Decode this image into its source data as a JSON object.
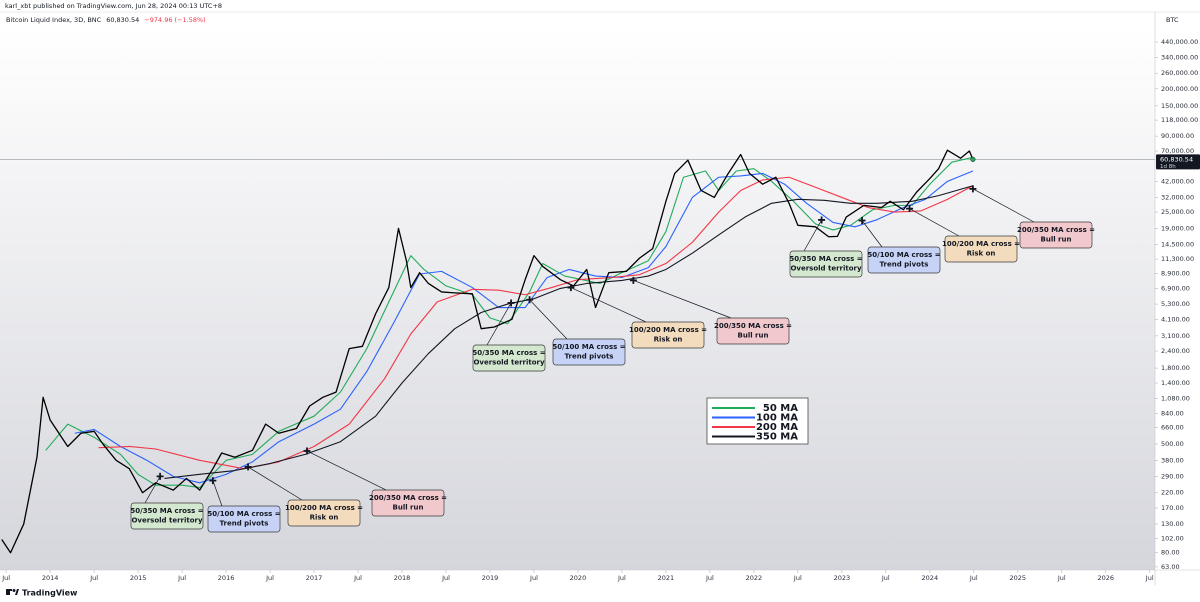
{
  "header": "karl_xbt published on TradingView.com, Jun 28, 2024 00:13 UTC+8",
  "footer": "TradingView",
  "chart_data": {
    "type": "line",
    "subtitle": "Bitcoin Liquid Index, 3D, BNC",
    "change_label": "−974.96 (−1.58%)",
    "currency": "BTC",
    "countdown": "1d 8h",
    "last": {
      "value": 60830.54,
      "label": "60,830.54"
    },
    "log_scale": true,
    "grid": false,
    "xlim": [
      2013.43,
      2026.56
    ],
    "ylim": [
      50.5,
      539000
    ],
    "xticks": [
      {
        "value": 2013.5,
        "label": "Jul"
      },
      2014,
      {
        "value": 2014.5,
        "label": "Jul"
      },
      2015,
      {
        "value": 2015.5,
        "label": "Jul"
      },
      2016,
      {
        "value": 2016.5,
        "label": "Jul"
      },
      2017,
      {
        "value": 2017.5,
        "label": "Jul"
      },
      2018,
      {
        "value": 2018.5,
        "label": "Jul"
      },
      2019,
      {
        "value": 2019.5,
        "label": "Jul"
      },
      2020,
      {
        "value": 2020.5,
        "label": "Jul"
      },
      2021,
      {
        "value": 2021.5,
        "label": "Jul"
      },
      2022,
      {
        "value": 2022.5,
        "label": "Jul"
      },
      2023,
      {
        "value": 2023.5,
        "label": "Jul"
      },
      2024,
      {
        "value": 2024.5,
        "label": "Jul"
      },
      2025,
      {
        "value": 2025.5,
        "label": "Jul"
      },
      2026,
      {
        "value": 2026.5,
        "label": "Jul"
      }
    ],
    "yticks": [
      {
        "value": 440000,
        "label": "440,000.00"
      },
      {
        "value": 340000,
        "label": "340,000.00"
      },
      {
        "value": 260000,
        "label": "260,000.00"
      },
      {
        "value": 200000,
        "label": "200,000.00"
      },
      {
        "value": 150000,
        "label": "150,000.00"
      },
      {
        "value": 118000,
        "label": "118,000.00"
      },
      {
        "value": 90000,
        "label": "90,000.00"
      },
      {
        "value": 70000,
        "label": "70,000.00"
      },
      {
        "value": 42000,
        "label": "42,000.00"
      },
      {
        "value": 32000,
        "label": "32,000.00"
      },
      {
        "value": 25000,
        "label": "25,000.00"
      },
      {
        "value": 19000,
        "label": "19,000.00"
      },
      {
        "value": 14500,
        "label": "14,500.00"
      },
      {
        "value": 11300,
        "label": "11,300.00"
      },
      {
        "value": 8900,
        "label": "8,900.00"
      },
      {
        "value": 6900,
        "label": "6,900.00"
      },
      {
        "value": 5300,
        "label": "5,300.00"
      },
      {
        "value": 4100,
        "label": "4,100.00"
      },
      {
        "value": 3100,
        "label": "3,100.00"
      },
      {
        "value": 2400,
        "label": "2,400.00"
      },
      {
        "value": 1800,
        "label": "1,800.00"
      },
      {
        "value": 1400,
        "label": "1,400.00"
      },
      {
        "value": 1080,
        "label": "1,080.00"
      },
      {
        "value": 840,
        "label": "840.00"
      },
      {
        "value": 660,
        "label": "660.00"
      },
      {
        "value": 500,
        "label": "500.00"
      },
      {
        "value": 380,
        "label": "380.00"
      },
      {
        "value": 290,
        "label": "290.00"
      },
      {
        "value": 220,
        "label": "220.00"
      },
      {
        "value": 170,
        "label": "170.00"
      },
      {
        "value": 130,
        "label": "130.00"
      },
      {
        "value": 102,
        "label": "102.00"
      },
      {
        "value": 80,
        "label": "80.00"
      },
      {
        "value": 63,
        "label": "63.00"
      }
    ],
    "price": {
      "color": "#000000",
      "x": [
        2013.45,
        2013.55,
        2013.7,
        2013.85,
        2013.92,
        2014.0,
        2014.1,
        2014.2,
        2014.35,
        2014.5,
        2014.6,
        2014.75,
        2014.9,
        2015.05,
        2015.2,
        2015.4,
        2015.55,
        2015.7,
        2015.85,
        2015.95,
        2016.1,
        2016.3,
        2016.45,
        2016.6,
        2016.8,
        2016.95,
        2017.1,
        2017.25,
        2017.4,
        2017.55,
        2017.7,
        2017.85,
        2017.96,
        2018.05,
        2018.1,
        2018.2,
        2018.3,
        2018.45,
        2018.6,
        2018.8,
        2018.9,
        2019.05,
        2019.25,
        2019.4,
        2019.5,
        2019.6,
        2019.8,
        2019.95,
        2020.1,
        2020.2,
        2020.35,
        2020.55,
        2020.7,
        2020.85,
        2021.0,
        2021.1,
        2021.25,
        2021.4,
        2021.55,
        2021.7,
        2021.85,
        2021.95,
        2022.1,
        2022.25,
        2022.4,
        2022.5,
        2022.7,
        2022.85,
        2022.95,
        2023.05,
        2023.25,
        2023.45,
        2023.55,
        2023.7,
        2023.85,
        2024.0,
        2024.1,
        2024.2,
        2024.35,
        2024.45,
        2024.49
      ],
      "values": [
        100,
        80,
        130,
        400,
        1100,
        750,
        600,
        480,
        600,
        620,
        500,
        380,
        330,
        220,
        260,
        230,
        280,
        230,
        330,
        430,
        400,
        450,
        700,
        600,
        650,
        950,
        1100,
        1200,
        2500,
        2600,
        4500,
        7000,
        19000,
        11000,
        7000,
        9000,
        7500,
        6500,
        6400,
        6300,
        3500,
        3600,
        4100,
        8000,
        12000,
        10000,
        8000,
        7200,
        9500,
        5000,
        9000,
        9200,
        11500,
        13500,
        30000,
        48000,
        60000,
        36000,
        32000,
        47000,
        66000,
        48000,
        40000,
        45000,
        29000,
        20000,
        19500,
        16500,
        16600,
        23000,
        28000,
        27000,
        30000,
        26000,
        35000,
        44000,
        52000,
        71000,
        62000,
        70000,
        60830.54
      ]
    },
    "series": [
      {
        "name": "50 MA",
        "color": "#22ab5b",
        "x": [
          2013.95,
          2014.2,
          2014.5,
          2014.8,
          2015.0,
          2015.2,
          2015.5,
          2015.7,
          2016.0,
          2016.3,
          2016.6,
          2017.0,
          2017.3,
          2017.6,
          2017.85,
          2018.1,
          2018.25,
          2018.5,
          2018.8,
          2019.0,
          2019.2,
          2019.45,
          2019.6,
          2019.85,
          2020.05,
          2020.25,
          2020.5,
          2020.8,
          2021.0,
          2021.2,
          2021.45,
          2021.6,
          2021.8,
          2022.0,
          2022.2,
          2022.45,
          2022.7,
          2022.9,
          2023.1,
          2023.35,
          2023.6,
          2023.8,
          2024.0,
          2024.25,
          2024.49
        ],
        "values": [
          450,
          700,
          560,
          420,
          300,
          250,
          250,
          240,
          380,
          420,
          620,
          800,
          1200,
          2500,
          5500,
          12000,
          9500,
          7200,
          6200,
          4200,
          3800,
          6500,
          10500,
          8500,
          8000,
          7500,
          9000,
          11000,
          18000,
          45000,
          50000,
          36000,
          50000,
          52000,
          42000,
          30000,
          20500,
          18500,
          20000,
          26000,
          28000,
          28000,
          40000,
          58000,
          63000
        ]
      },
      {
        "name": "100 MA",
        "color": "#2962ff",
        "x": [
          2014.28,
          2014.5,
          2014.8,
          2015.1,
          2015.4,
          2015.7,
          2016.0,
          2016.3,
          2016.6,
          2017.0,
          2017.3,
          2017.6,
          2017.9,
          2018.2,
          2018.45,
          2018.8,
          2019.1,
          2019.4,
          2019.65,
          2019.9,
          2020.2,
          2020.5,
          2020.8,
          2021.0,
          2021.3,
          2021.6,
          2021.85,
          2022.1,
          2022.35,
          2022.6,
          2022.9,
          2023.15,
          2023.4,
          2023.7,
          2023.95,
          2024.2,
          2024.49
        ],
        "values": [
          600,
          640,
          480,
          380,
          290,
          260,
          300,
          370,
          520,
          700,
          900,
          1700,
          3800,
          8800,
          9200,
          7000,
          5000,
          5000,
          8300,
          9500,
          8500,
          8300,
          9800,
          14000,
          32000,
          45000,
          46000,
          48000,
          40000,
          29000,
          21000,
          19500,
          22000,
          27000,
          31000,
          42000,
          50000
        ]
      },
      {
        "name": "200 MA",
        "color": "#f23645",
        "x": [
          2014.55,
          2014.9,
          2015.2,
          2015.7,
          2016.2,
          2016.6,
          2017.0,
          2017.4,
          2017.8,
          2018.1,
          2018.4,
          2018.8,
          2019.1,
          2019.4,
          2019.7,
          2020.0,
          2020.4,
          2020.7,
          2021.0,
          2021.3,
          2021.6,
          2021.85,
          2022.1,
          2022.4,
          2022.7,
          2023.0,
          2023.3,
          2023.6,
          2023.9,
          2024.2,
          2024.49
        ],
        "values": [
          470,
          480,
          460,
          380,
          330,
          370,
          480,
          700,
          1500,
          3200,
          5500,
          6800,
          6700,
          6200,
          7000,
          8000,
          8300,
          8700,
          10500,
          15000,
          25000,
          36000,
          43000,
          45000,
          38000,
          32000,
          27000,
          25000,
          25500,
          31000,
          39000
        ]
      },
      {
        "name": "350 MA",
        "color": "#131722",
        "x": [
          2015.3,
          2015.7,
          2016.1,
          2016.5,
          2016.9,
          2017.3,
          2017.7,
          2018.0,
          2018.3,
          2018.6,
          2018.9,
          2019.2,
          2019.5,
          2019.8,
          2020.1,
          2020.5,
          2020.8,
          2021.0,
          2021.3,
          2021.6,
          2021.9,
          2022.2,
          2022.5,
          2022.8,
          2023.1,
          2023.4,
          2023.8,
          2024.1,
          2024.49
        ],
        "values": [
          280,
          300,
          320,
          360,
          420,
          520,
          800,
          1400,
          2300,
          3500,
          4600,
          5300,
          5800,
          6900,
          7500,
          7900,
          8500,
          9500,
          12500,
          17000,
          23000,
          29000,
          31000,
          30500,
          29000,
          29000,
          30000,
          33000,
          39000
        ]
      }
    ],
    "annotations": [
      {
        "x": 2015.25,
        "y": 290,
        "lines": [
          "50/350 MA cross =",
          "Oversold territory"
        ],
        "color": "#d3e8cf"
      },
      {
        "x": 2015.85,
        "y": 270,
        "lines": [
          "50/100 MA cross =",
          "Trend pivots"
        ],
        "color": "#c7d3f6"
      },
      {
        "x": 2016.25,
        "y": 340,
        "lines": [
          "100/200 MA cross =",
          "Risk on"
        ],
        "color": "#f3dcbd"
      },
      {
        "x": 2016.92,
        "y": 445,
        "lines": [
          "200/350 MA cross =",
          "Bull run"
        ],
        "color": "#f1c8cb"
      },
      {
        "x": 2019.24,
        "y": 5400,
        "lines": [
          "50/350 MA cross =",
          "Oversold territory"
        ],
        "color": "#d3e8cf"
      },
      {
        "x": 2019.45,
        "y": 5700,
        "lines": [
          "50/100 MA cross =",
          "Trend pivots"
        ],
        "color": "#c7d3f6"
      },
      {
        "x": 2019.92,
        "y": 7000,
        "lines": [
          "100/200 MA cross =",
          "Risk on"
        ],
        "color": "#f3dcbd"
      },
      {
        "x": 2020.63,
        "y": 7900,
        "lines": [
          "200/350 MA cross =",
          "Bull run"
        ],
        "color": "#f1c8cb"
      },
      {
        "x": 2022.77,
        "y": 21900,
        "lines": [
          "50/350 MA cross =",
          "Oversold territory"
        ],
        "color": "#d3e8cf"
      },
      {
        "x": 2023.23,
        "y": 21700,
        "lines": [
          "50/100 MA cross =",
          "Trend pivots"
        ],
        "color": "#c7d3f6"
      },
      {
        "x": 2023.77,
        "y": 26500,
        "lines": [
          "100/200 MA cross =",
          "Risk on"
        ],
        "color": "#f3dcbd"
      },
      {
        "x": 2024.49,
        "y": 37000,
        "lines": [
          "200/350 MA cross =",
          "Bull run"
        ],
        "color": "#f1c8cb"
      }
    ]
  }
}
